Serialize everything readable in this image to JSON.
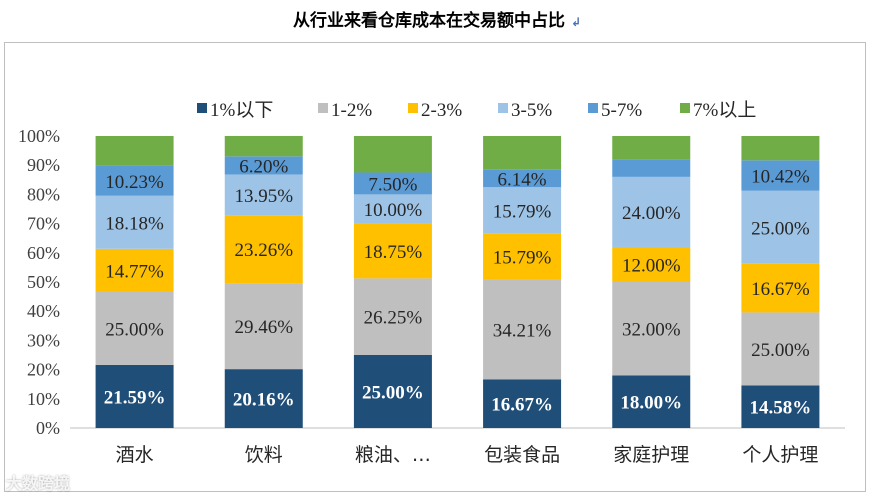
{
  "title": "从行业来看仓库成本在交易额中占比",
  "title_mark": "↲",
  "watermark": "大数跨境",
  "chart_data": {
    "type": "bar",
    "stacked": true,
    "percent": true,
    "categories": [
      "酒水",
      "饮料",
      "粮油、…",
      "包装食品",
      "家庭护理",
      "个人护理"
    ],
    "series": [
      {
        "name": "1%以下",
        "color": "#1f4e79",
        "values": [
          21.59,
          20.16,
          25.0,
          16.67,
          18.0,
          14.58
        ]
      },
      {
        "name": "1-2%",
        "color": "#bfbfbf",
        "values": [
          25.0,
          29.46,
          26.25,
          34.21,
          32.0,
          25.0
        ]
      },
      {
        "name": "2-3%",
        "color": "#ffc000",
        "values": [
          14.77,
          23.26,
          18.75,
          15.79,
          12.0,
          16.67
        ]
      },
      {
        "name": "3-5%",
        "color": "#9dc3e6",
        "values": [
          18.18,
          13.95,
          10.0,
          15.79,
          24.0,
          25.0
        ]
      },
      {
        "name": "5-7%",
        "color": "#5b9bd5",
        "values": [
          10.23,
          6.2,
          7.5,
          6.14,
          6.0,
          10.42
        ]
      },
      {
        "name": "7%以上",
        "color": "#70ad47",
        "values": [
          10.23,
          6.98,
          12.5,
          11.4,
          8.0,
          8.33
        ]
      }
    ],
    "data_labels": [
      [
        "21.59%",
        "25.00%",
        "14.77%",
        "18.18%",
        "10.23%",
        ""
      ],
      [
        "20.16%",
        "29.46%",
        "23.26%",
        "13.95%",
        "6.20%",
        ""
      ],
      [
        "25.00%",
        "26.25%",
        "18.75%",
        "10.00%",
        "7.50%",
        ""
      ],
      [
        "16.67%",
        "34.21%",
        "15.79%",
        "15.79%",
        "6.14%",
        ""
      ],
      [
        "18.00%",
        "32.00%",
        "12.00%",
        "24.00%",
        "",
        ""
      ],
      [
        "14.58%",
        "25.00%",
        "16.67%",
        "25.00%",
        "10.42%",
        ""
      ]
    ],
    "y_ticks": [
      "0%",
      "10%",
      "20%",
      "30%",
      "40%",
      "50%",
      "60%",
      "70%",
      "80%",
      "90%",
      "100%"
    ],
    "ylim": [
      0,
      100
    ],
    "legend_position": "top"
  }
}
